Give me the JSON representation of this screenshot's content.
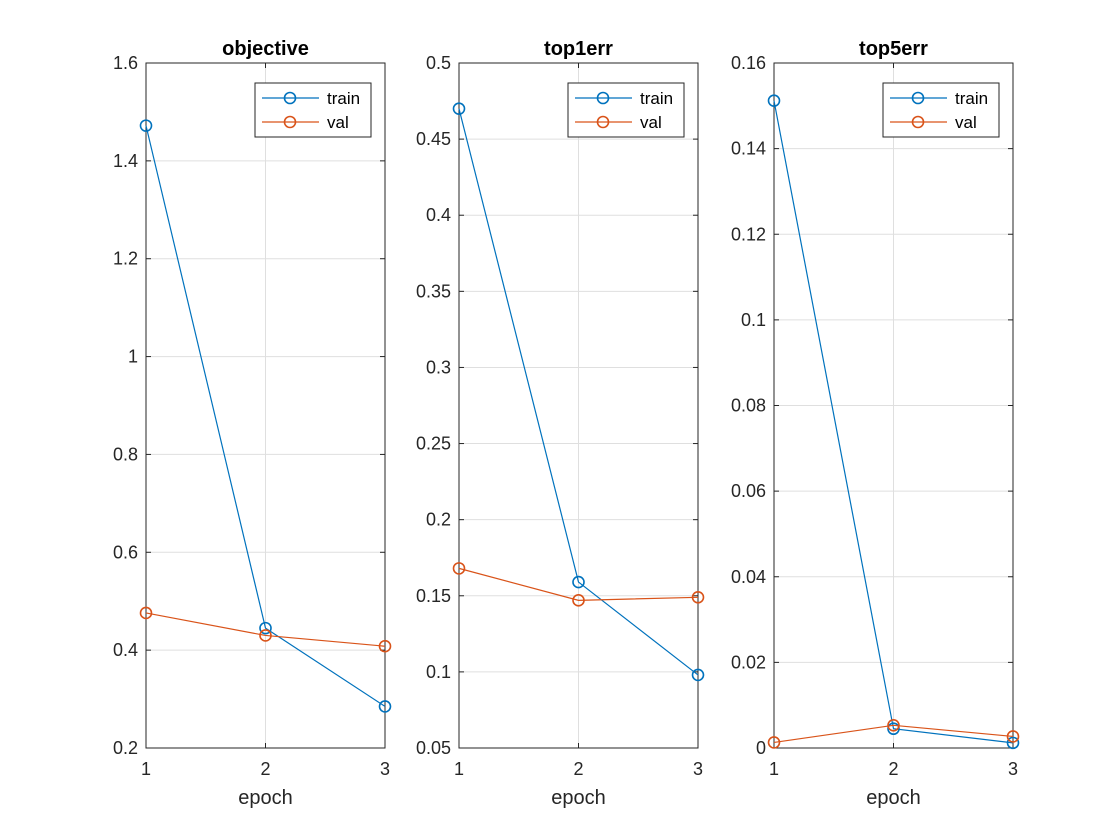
{
  "colors": {
    "train": "#0072BD",
    "val": "#D95319",
    "axis": "#262626",
    "grid": "#DFDFDF"
  },
  "chart_data": [
    {
      "type": "line",
      "title": "objective",
      "xlabel": "epoch",
      "ylabel": "",
      "x": [
        1,
        2,
        3
      ],
      "xticks": [
        "1",
        "2",
        "3"
      ],
      "xlim": [
        1,
        3
      ],
      "ylim": [
        0.2,
        1.6
      ],
      "yticks": [
        "0.2",
        "0.4",
        "0.6",
        "0.8",
        "1",
        "1.2",
        "1.4",
        "1.6"
      ],
      "grid": true,
      "legend_position": "top-right",
      "series": [
        {
          "name": "train",
          "values": [
            1.472,
            0.445,
            0.285
          ]
        },
        {
          "name": "val",
          "values": [
            0.476,
            0.43,
            0.408
          ]
        }
      ]
    },
    {
      "type": "line",
      "title": "top1err",
      "xlabel": "epoch",
      "ylabel": "",
      "x": [
        1,
        2,
        3
      ],
      "xticks": [
        "1",
        "2",
        "3"
      ],
      "xlim": [
        1,
        3
      ],
      "ylim": [
        0.05,
        0.5
      ],
      "yticks": [
        "0.05",
        "0.1",
        "0.15",
        "0.2",
        "0.25",
        "0.3",
        "0.35",
        "0.4",
        "0.45",
        "0.5"
      ],
      "grid": true,
      "legend_position": "top-right",
      "series": [
        {
          "name": "train",
          "values": [
            0.47,
            0.159,
            0.098
          ]
        },
        {
          "name": "val",
          "values": [
            0.168,
            0.147,
            0.149
          ]
        }
      ]
    },
    {
      "type": "line",
      "title": "top5err",
      "xlabel": "epoch",
      "ylabel": "",
      "x": [
        1,
        2,
        3
      ],
      "xticks": [
        "1",
        "2",
        "3"
      ],
      "xlim": [
        1,
        3
      ],
      "ylim": [
        0,
        0.16
      ],
      "yticks": [
        "0",
        "0.02",
        "0.04",
        "0.06",
        "0.08",
        "0.1",
        "0.12",
        "0.14",
        "0.16"
      ],
      "grid": true,
      "legend_position": "top-right",
      "series": [
        {
          "name": "train",
          "values": [
            0.1512,
            0.0045,
            0.0012
          ]
        },
        {
          "name": "val",
          "values": [
            0.0013,
            0.0053,
            0.0027
          ]
        }
      ]
    }
  ]
}
